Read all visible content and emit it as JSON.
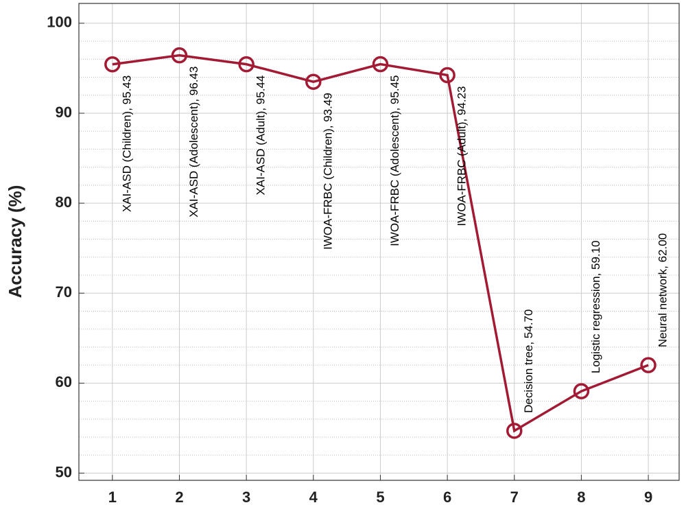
{
  "chart_data": {
    "type": "line",
    "ylabel": "Accuracy (%)",
    "x": [
      1,
      2,
      3,
      4,
      5,
      6,
      7,
      8,
      9
    ],
    "series": [
      {
        "color": "#a21a33",
        "values": [
          95.43,
          96.43,
          95.44,
          93.49,
          95.45,
          94.23,
          54.7,
          59.1,
          62.0
        ],
        "value_labels": [
          "XAI-ASD (Children), 95.43",
          "XAI-ASD (Adolescent), 96.43",
          "XAI-ASD (Adult), 95.44",
          "IWOA-FRBC (Children), 93.49",
          "IWOA-FRBC (Adolescent), 95.45",
          "IWOA-FRBC (Adult), 94.23",
          "Decision tree, 54.70",
          "Logistic regression, 59.10",
          "Neural network, 62.00"
        ]
      }
    ],
    "xlim": [
      0.5,
      9.46
    ],
    "xticks": [
      1,
      2,
      3,
      4,
      5,
      6,
      7,
      8,
      9
    ],
    "ylim": [
      49.2,
      102.2
    ],
    "yticks": [
      50,
      60,
      70,
      80,
      90,
      100
    ],
    "grid": true,
    "minor_grid": true
  }
}
